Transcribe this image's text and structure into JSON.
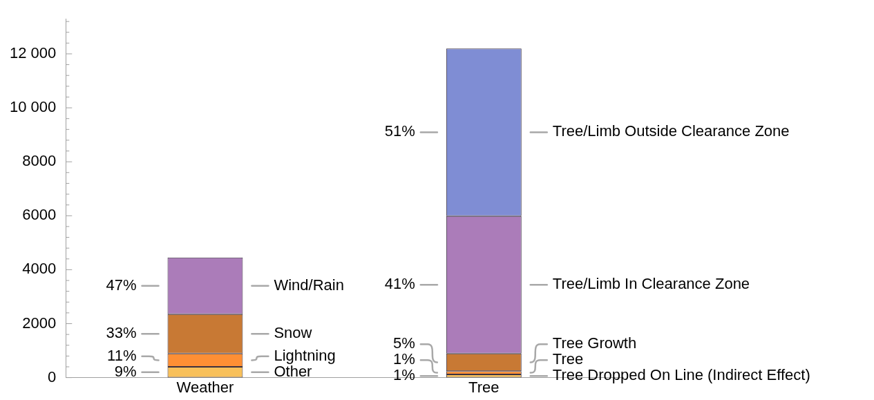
{
  "chart_data": {
    "type": "bar",
    "stacked": true,
    "categories": [
      "Weather",
      "Tree"
    ],
    "series": [
      {
        "color": "#f8c05a",
        "values": [
          400,
          120
        ]
      },
      {
        "color": "#fe8f34",
        "values": [
          490,
          120
        ]
      },
      {
        "color": "#c87934",
        "values": [
          1460,
          650
        ]
      },
      {
        "color": "#ab7cb9",
        "values": [
          2100,
          5100
        ]
      },
      {
        "color": "#7f8dd4",
        "values": [
          null,
          6210
        ]
      }
    ],
    "ylim": [
      0,
      13300
    ],
    "yticks": [
      0,
      {
        "value": 400,
        "label": null
      },
      {
        "value": 800,
        "label": null
      },
      {
        "value": 1200,
        "label": null
      },
      {
        "value": 1600,
        "label": null
      },
      2000,
      {
        "value": 2400,
        "label": null
      },
      {
        "value": 2800,
        "label": null
      },
      {
        "value": 3200,
        "label": null
      },
      {
        "value": 3600,
        "label": null
      },
      4000,
      {
        "value": 4400,
        "label": null
      },
      {
        "value": 4800,
        "label": null
      },
      {
        "value": 5200,
        "label": null
      },
      {
        "value": 5600,
        "label": null
      },
      6000,
      {
        "value": 6400,
        "label": null
      },
      {
        "value": 6800,
        "label": null
      },
      {
        "value": 7200,
        "label": null
      },
      {
        "value": 7600,
        "label": null
      },
      8000,
      {
        "value": 8400,
        "label": null
      },
      {
        "value": 8800,
        "label": null
      },
      {
        "value": 9200,
        "label": null
      },
      {
        "value": 9600,
        "label": null
      },
      {
        "value": 10000,
        "label": "10 000"
      },
      {
        "value": 10400,
        "label": null
      },
      {
        "value": 10800,
        "label": null
      },
      {
        "value": 11200,
        "label": null
      },
      {
        "value": 11600,
        "label": null
      },
      {
        "value": 12000,
        "label": "12 000"
      },
      {
        "value": 12400,
        "label": null
      },
      {
        "value": 12800,
        "label": null
      },
      {
        "value": 13200,
        "label": null
      }
    ],
    "grid": false,
    "legend": false,
    "annotations": [
      "9%",
      "Other",
      "11%",
      "Lightning",
      "33%",
      "Snow",
      "47%",
      "Wind/Rain",
      "1%",
      "Tree Dropped On Line (Indirect Effect)",
      "1%",
      "Tree",
      "5%",
      "Tree Growth",
      "41%",
      "Tree/Limb In Clearance Zone",
      "51%",
      "Tree/Limb Outside Clearance Zone"
    ]
  }
}
